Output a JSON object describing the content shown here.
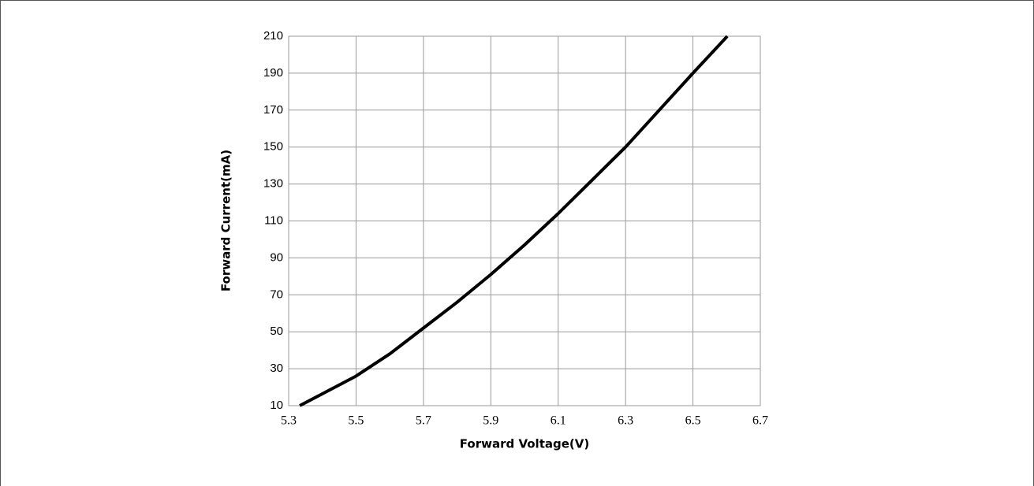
{
  "chart_data": {
    "type": "line",
    "x_label": "Forward Voltage(V)",
    "y_label": "Forward Current(mA)",
    "x": [
      5.333,
      5.5,
      5.6,
      5.7,
      5.8,
      5.9,
      6.0,
      6.1,
      6.2,
      6.3,
      6.4,
      6.5,
      6.602
    ],
    "series": [
      {
        "name": "Forward Current",
        "color": "#000000",
        "values": [
          10,
          26,
          38,
          52,
          66,
          81,
          97,
          114,
          132,
          150,
          170,
          190,
          210
        ]
      }
    ],
    "xlim": [
      5.3,
      6.7
    ],
    "xticks": [
      5.3,
      5.5,
      5.7,
      5.9,
      6.1,
      6.3,
      6.5,
      6.7
    ],
    "ylim": [
      10,
      210
    ],
    "yticks": [
      10,
      30,
      50,
      70,
      90,
      110,
      130,
      150,
      170,
      190,
      210
    ],
    "grid": true
  }
}
